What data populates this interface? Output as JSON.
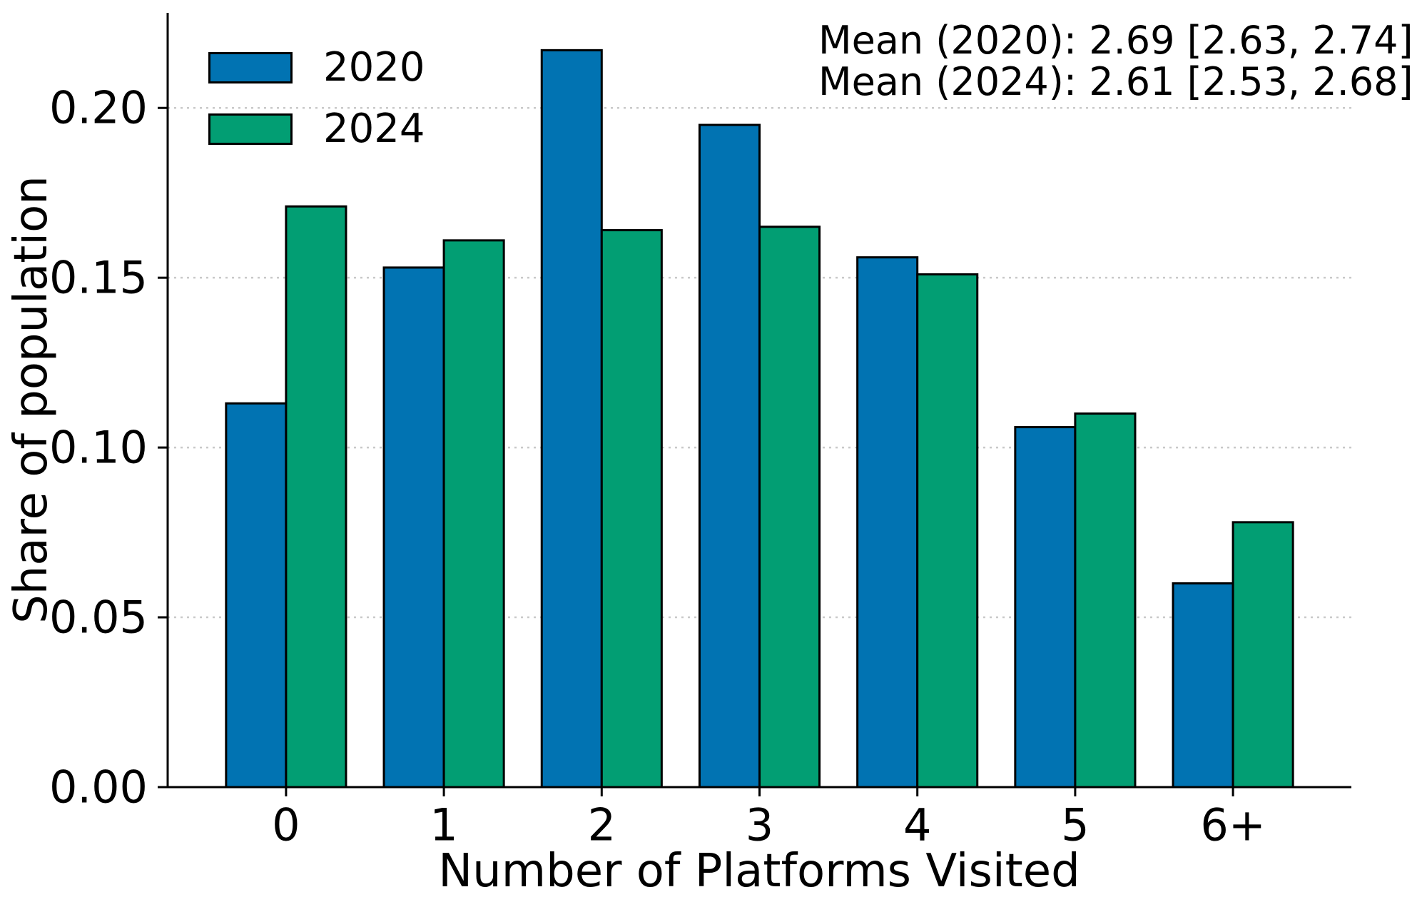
{
  "figure": {
    "background": "#ffffff",
    "text_color": "#000000",
    "grid_color": "#c9c9c9",
    "spine_color": "#000000"
  },
  "chart_data": {
    "type": "bar",
    "title": "",
    "xlabel": "Number of Platforms Visited",
    "ylabel": "Share of population",
    "categories": [
      "0",
      "1",
      "2",
      "3",
      "4",
      "5",
      "6+"
    ],
    "series": [
      {
        "name": "2020",
        "color": "#0173b2",
        "values": [
          0.113,
          0.153,
          0.217,
          0.195,
          0.156,
          0.106,
          0.06
        ]
      },
      {
        "name": "2024",
        "color": "#029e73",
        "values": [
          0.171,
          0.161,
          0.164,
          0.165,
          0.151,
          0.11,
          0.078
        ]
      }
    ],
    "bar_edge_color": "#000000",
    "bar_width_fraction": 0.38,
    "ylim": [
      0,
      0.228
    ],
    "yticks": [
      0.0,
      0.05,
      0.1,
      0.15,
      0.2
    ],
    "ytick_labels": [
      "0.00",
      "0.05",
      "0.10",
      "0.15",
      "0.20"
    ],
    "grid": "horizontal-dotted",
    "legend_position": "upper left",
    "annotations": [
      "Mean (2020): 2.69 [2.63, 2.74]",
      "Mean (2024): 2.61 [2.53, 2.68]"
    ]
  }
}
